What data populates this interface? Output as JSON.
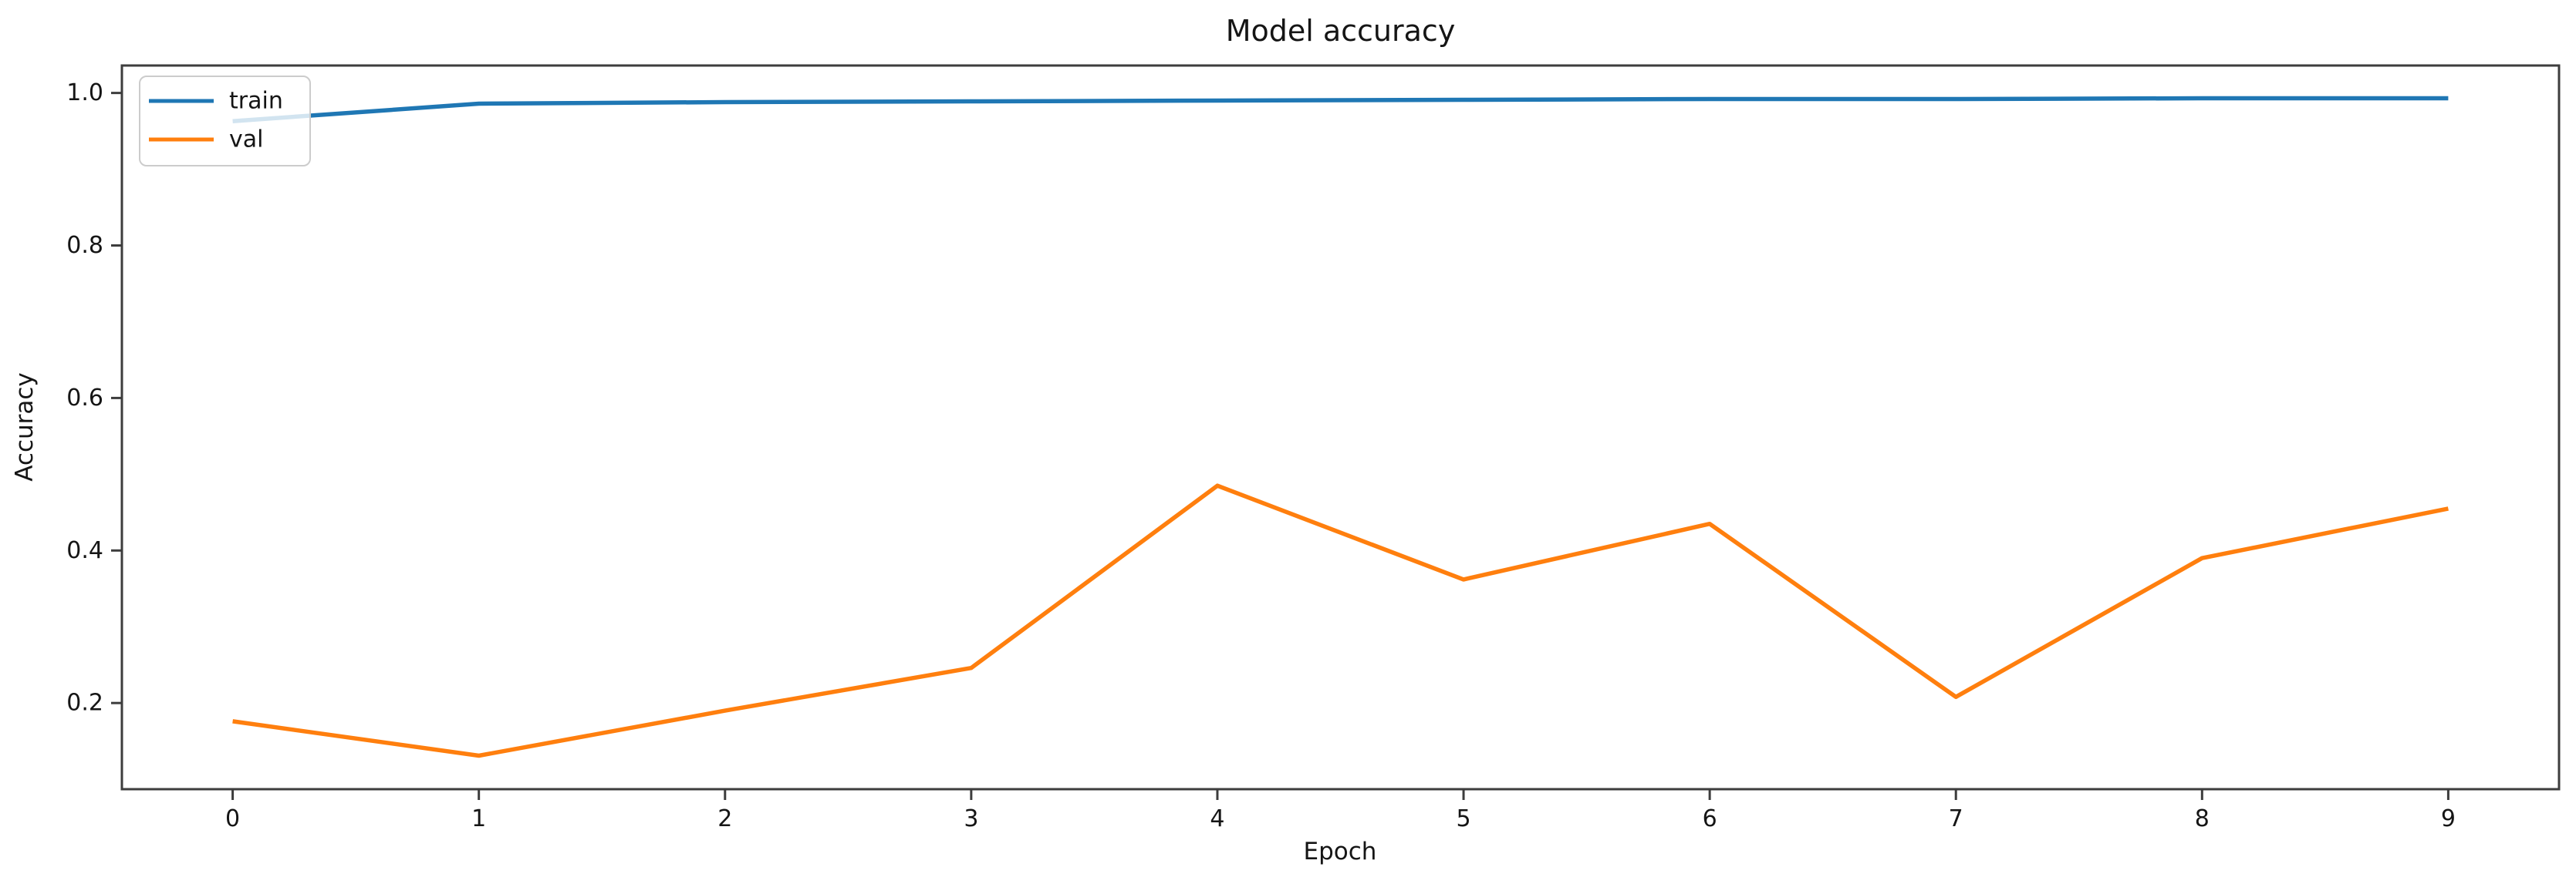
{
  "chart_data": {
    "type": "line",
    "title": "Model accuracy",
    "xlabel": "Epoch",
    "ylabel": "Accuracy",
    "x": [
      0,
      1,
      2,
      3,
      4,
      5,
      6,
      7,
      8,
      9
    ],
    "series": [
      {
        "name": "train",
        "color": "#1f77b4",
        "values": [
          0.963,
          0.986,
          0.988,
          0.989,
          0.99,
          0.991,
          0.992,
          0.992,
          0.993,
          0.993
        ]
      },
      {
        "name": "val",
        "color": "#ff7f0e",
        "values": [
          0.176,
          0.131,
          0.19,
          0.246,
          0.485,
          0.362,
          0.435,
          0.208,
          0.39,
          0.455
        ]
      }
    ],
    "xticks": [
      0,
      1,
      2,
      3,
      4,
      5,
      6,
      7,
      8,
      9
    ],
    "xtick_labels": [
      "0",
      "1",
      "2",
      "3",
      "4",
      "5",
      "6",
      "7",
      "8",
      "9"
    ],
    "yticks": [
      0.2,
      0.4,
      0.6,
      0.8,
      1.0
    ],
    "ytick_labels": [
      "0.2",
      "0.4",
      "0.6",
      "0.8",
      "1.0"
    ],
    "xlim": [
      -0.45,
      9.45
    ],
    "ylim": [
      0.087,
      1.036
    ],
    "grid": false,
    "legend_position": "upper left"
  },
  "colors": {
    "background": "#ffffff",
    "spine": "#3d3d3d",
    "tick": "#3d3d3d",
    "text": "#151515",
    "legend_border": "#cccccc",
    "legend_fill_alpha": "rgba(255,255,255,0.8)"
  }
}
